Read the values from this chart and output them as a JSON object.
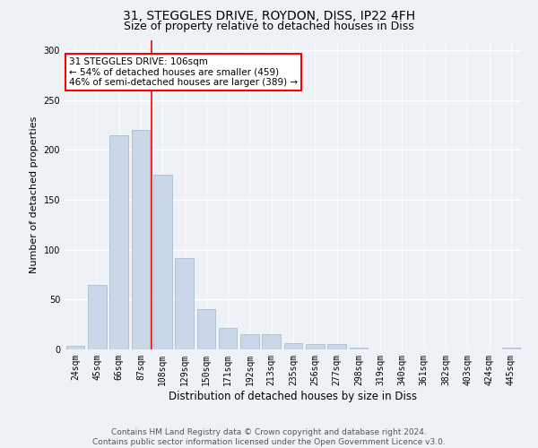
{
  "title1": "31, STEGGLES DRIVE, ROYDON, DISS, IP22 4FH",
  "title2": "Size of property relative to detached houses in Diss",
  "xlabel": "Distribution of detached houses by size in Diss",
  "ylabel": "Number of detached properties",
  "bar_labels": [
    "24sqm",
    "45sqm",
    "66sqm",
    "87sqm",
    "108sqm",
    "129sqm",
    "150sqm",
    "171sqm",
    "192sqm",
    "213sqm",
    "235sqm",
    "256sqm",
    "277sqm",
    "298sqm",
    "319sqm",
    "340sqm",
    "361sqm",
    "382sqm",
    "403sqm",
    "424sqm",
    "445sqm"
  ],
  "bar_values": [
    4,
    65,
    215,
    220,
    175,
    92,
    40,
    22,
    15,
    15,
    6,
    5,
    5,
    2,
    0,
    0,
    0,
    0,
    0,
    0,
    2
  ],
  "bar_color": "#c8d8e8",
  "bar_edge_color": "#a8bece",
  "property_line_x": 4,
  "property_line_label": "31 STEGGLES DRIVE: 106sqm",
  "annotation_line1": "← 54% of detached houses are smaller (459)",
  "annotation_line2": "46% of semi-detached houses are larger (389) →",
  "annotation_box_color": "white",
  "annotation_box_edge_color": "red",
  "vline_color": "red",
  "ylim": [
    0,
    310
  ],
  "yticks": [
    0,
    50,
    100,
    150,
    200,
    250,
    300
  ],
  "footnote": "Contains HM Land Registry data © Crown copyright and database right 2024.\nContains public sector information licensed under the Open Government Licence v3.0.",
  "bg_color": "#eef2f7",
  "grid_color": "white",
  "title1_fontsize": 10,
  "title2_fontsize": 9,
  "xlabel_fontsize": 8.5,
  "ylabel_fontsize": 8,
  "tick_fontsize": 7,
  "footnote_fontsize": 6.5,
  "annot_fontsize": 7.5
}
